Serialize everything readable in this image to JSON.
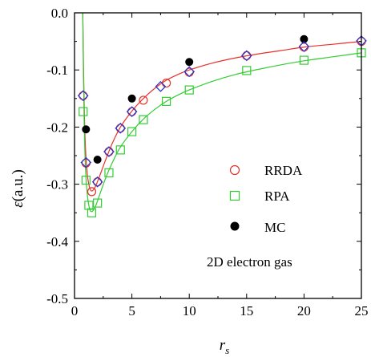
{
  "chart_data": {
    "type": "scatter",
    "xlabel": "r",
    "xlabel_sub": "s",
    "ylabel": "ε",
    "ylabel_unit": "(a.u.)",
    "xlim": [
      0,
      25
    ],
    "ylim": [
      -0.5,
      0.0
    ],
    "xticks": [
      0,
      5,
      10,
      15,
      20,
      25
    ],
    "yticks": [
      0.0,
      -0.1,
      -0.2,
      -0.3,
      -0.4,
      -0.5
    ],
    "ytick_labels": [
      "0.0",
      "-0.1",
      "-0.2",
      "-0.3",
      "-0.4",
      "-0.5"
    ],
    "grid": false,
    "legend_placement": "center-right",
    "annotation": "2D electron gas",
    "series": [
      {
        "name": "RRDA",
        "marker": "circle-open",
        "color": "#e8302a",
        "x": [
          0.75,
          1.0,
          1.5,
          2.0,
          3.0,
          4.0,
          5.0,
          6.0,
          8.0,
          10.0,
          15.0,
          20.0,
          25.0
        ],
        "y": [
          -0.145,
          -0.263,
          -0.313,
          -0.296,
          -0.243,
          -0.202,
          -0.173,
          -0.153,
          -0.123,
          -0.104,
          -0.075,
          -0.06,
          -0.05
        ],
        "curve_x": [
          0.72,
          0.78,
          0.85,
          0.95,
          1.1,
          1.3,
          1.5,
          1.8,
          2.2,
          2.7,
          3.3,
          4,
          5,
          6,
          7,
          8,
          9,
          10,
          12,
          14,
          16,
          18,
          20,
          22.5,
          25
        ],
        "curve_y": [
          0.0,
          -0.09,
          -0.17,
          -0.235,
          -0.28,
          -0.305,
          -0.312,
          -0.305,
          -0.285,
          -0.258,
          -0.228,
          -0.2,
          -0.172,
          -0.15,
          -0.132,
          -0.118,
          -0.108,
          -0.1,
          -0.088,
          -0.079,
          -0.072,
          -0.066,
          -0.06,
          -0.055,
          -0.05
        ]
      },
      {
        "name": "RPA",
        "marker": "square-open",
        "color": "#33cc33",
        "x": [
          0.75,
          1.0,
          1.25,
          1.5,
          2.0,
          3.0,
          4.0,
          5.0,
          6.0,
          8.0,
          10.0,
          15.0,
          20.0,
          25.0
        ],
        "y": [
          -0.173,
          -0.293,
          -0.337,
          -0.35,
          -0.333,
          -0.28,
          -0.24,
          -0.208,
          -0.187,
          -0.155,
          -0.135,
          -0.101,
          -0.083,
          -0.07
        ],
        "curve_x": [
          0.72,
          0.78,
          0.85,
          0.95,
          1.1,
          1.3,
          1.5,
          1.8,
          2.2,
          2.7,
          3.3,
          4,
          5,
          6,
          7,
          8,
          9,
          10,
          12,
          14,
          16,
          18,
          20,
          22.5,
          25
        ],
        "curve_y": [
          0.0,
          -0.11,
          -0.2,
          -0.27,
          -0.315,
          -0.342,
          -0.348,
          -0.34,
          -0.318,
          -0.29,
          -0.262,
          -0.235,
          -0.208,
          -0.186,
          -0.169,
          -0.155,
          -0.144,
          -0.135,
          -0.12,
          -0.108,
          -0.099,
          -0.091,
          -0.084,
          -0.077,
          -0.07
        ]
      },
      {
        "name": "MC",
        "marker": "circle-filled",
        "color": "#000000",
        "x": [
          1.0,
          2.0,
          5.0,
          10.0,
          20.0
        ],
        "y": [
          -0.204,
          -0.257,
          -0.15,
          -0.086,
          -0.046
        ]
      },
      {
        "marker": "diamond-open",
        "color": "#2233cc",
        "x": [
          0.75,
          1.0,
          2.0,
          3.0,
          4.0,
          5.0,
          7.5,
          10.0,
          15.0,
          20.0,
          25.0
        ],
        "y": [
          -0.145,
          -0.262,
          -0.296,
          -0.243,
          -0.202,
          -0.173,
          -0.129,
          -0.103,
          -0.075,
          -0.059,
          -0.049
        ]
      }
    ]
  }
}
